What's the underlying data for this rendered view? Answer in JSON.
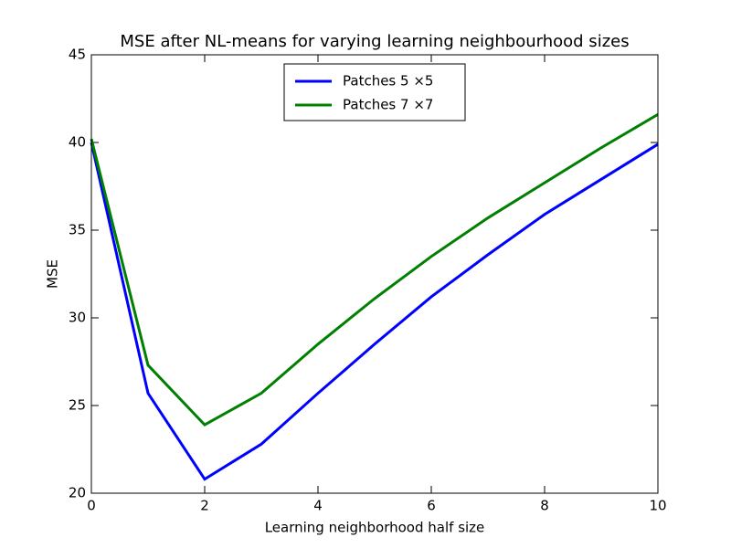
{
  "chart_data": {
    "type": "line",
    "title": "MSE after NL-means for varying learning neighbourhood sizes",
    "x_label": "Learning neighborhood half size",
    "y_label": "MSE",
    "x": [
      0,
      1,
      2,
      3,
      4,
      5,
      6,
      7,
      8,
      9,
      10
    ],
    "series": [
      {
        "name": "Patches 5 ×5",
        "color": "#0000ff",
        "values": [
          40.0,
          25.7,
          20.8,
          22.8,
          25.7,
          28.5,
          31.2,
          33.6,
          35.9,
          37.9,
          39.9
        ]
      },
      {
        "name": "Patches 7 ×7",
        "color": "#008000",
        "values": [
          40.2,
          27.3,
          23.9,
          25.7,
          28.5,
          31.1,
          33.5,
          35.7,
          37.7,
          39.7,
          41.6
        ]
      }
    ],
    "xlim": [
      0,
      10
    ],
    "xticks": [
      0,
      2,
      4,
      6,
      8,
      10
    ],
    "ylim": [
      20,
      45
    ],
    "yticks": [
      20,
      25,
      30,
      35,
      40,
      45
    ],
    "legend": "upper center",
    "grid": false
  }
}
